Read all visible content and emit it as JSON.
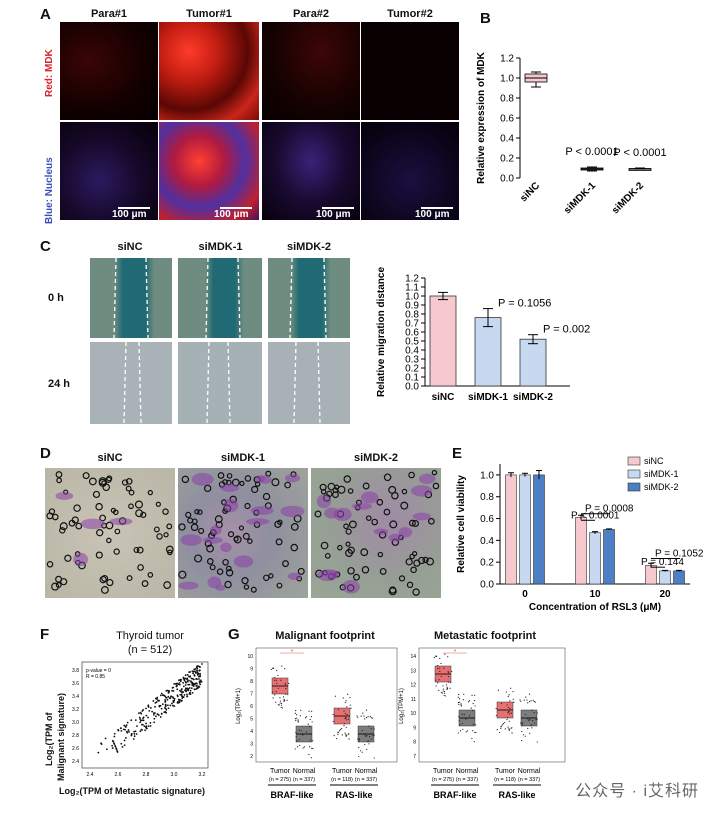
{
  "panels": {
    "A": "A",
    "B": "B",
    "C": "C",
    "D": "D",
    "E": "E",
    "F": "F",
    "G": "G"
  },
  "panelA": {
    "cols": [
      "Para#1",
      "Tumor#1",
      "Para#2",
      "Tumor#2"
    ],
    "row_labels": [
      "Red: MDK",
      "Blue: Nucleus"
    ],
    "scale": "100 μm"
  },
  "panelC": {
    "cols": [
      "siNC",
      "siMDK-1",
      "siMDK-2"
    ],
    "rows": [
      "0 h",
      "24 h"
    ]
  },
  "panelD": {
    "cols": [
      "siNC",
      "siMDK-1",
      "siMDK-2"
    ]
  },
  "panelF": {
    "title": "Thyroid tumor",
    "subtitle": "(n = 512)",
    "pval": "p-value = 0",
    "r": "R = 0.85",
    "ylabel_line1": "Log₂(TPM of",
    "ylabel_line2": "Malignant signature)",
    "xlabel": "Log₂(TPM of Metastatic signature)",
    "xticks": [
      "2.4",
      "2.6",
      "2.8",
      "3.0",
      "3.2"
    ],
    "yticks": [
      "3.8",
      "3.6",
      "3.4",
      "3.2",
      "3.0",
      "2.8",
      "2.6",
      "2.4"
    ]
  },
  "panelG": {
    "left_title": "Malignant footprint",
    "right_title": "Metastatic footprint",
    "ylabel": "Log₂(TPM+1)",
    "groups": [
      "Tumor",
      "Normal",
      "Tumor",
      "Normal"
    ],
    "left_n": [
      "(n = 275)",
      "(n = 337)",
      "(n = 118)",
      "(n = 337)"
    ],
    "right_n": [
      "(n = 275)",
      "(n = 337)",
      "(n = 118)",
      "(n = 337)"
    ],
    "cat1": "BRAF-like",
    "cat2": "RAS-like",
    "left_yticks": [
      "10",
      "9",
      "8",
      "7",
      "6",
      "5",
      "4",
      "3",
      "2"
    ],
    "right_yticks": [
      "14",
      "13",
      "12",
      "11",
      "10",
      "9",
      "8",
      "7"
    ],
    "sig": "*"
  },
  "watermark": "公众号 · i艾科研",
  "chart_data": [
    {
      "id": "B",
      "type": "box",
      "categories": [
        "siNC",
        "siMDK-1",
        "siMDK-2"
      ],
      "median": [
        1.0,
        0.09,
        0.09
      ],
      "q1": [
        0.96,
        0.08,
        0.085
      ],
      "q3": [
        1.04,
        0.1,
        0.095
      ],
      "min": [
        0.91,
        0.07,
        0.08
      ],
      "max": [
        1.06,
        0.11,
        0.1
      ],
      "annotations": [
        "",
        "P < 0.0001",
        "P < 0.0001"
      ],
      "ylabel": "Relative expression of MDK",
      "ylim": [
        0,
        1.2
      ],
      "yticks": [
        0.0,
        0.2,
        0.4,
        0.6,
        0.8,
        1.0,
        1.2
      ],
      "colors": [
        "#f6c9cf",
        "#c6d9f1",
        "#c6d9f1"
      ]
    },
    {
      "id": "C",
      "type": "bar",
      "categories": [
        "siNC",
        "siMDK-1",
        "siMDK-2"
      ],
      "values": [
        1.0,
        0.76,
        0.52
      ],
      "errors": [
        0.04,
        0.1,
        0.05
      ],
      "annotations": [
        "",
        "P = 0.1056",
        "P = 0.0024"
      ],
      "ylabel": "Relative migration distance",
      "ylim": [
        0,
        1.2
      ],
      "yticks": [
        0.0,
        0.1,
        0.2,
        0.3,
        0.4,
        0.5,
        0.6,
        0.7,
        0.8,
        0.9,
        1.0,
        1.1,
        1.2
      ],
      "colors": [
        "#f6c9cf",
        "#c6d9f1",
        "#c6d9f1"
      ]
    },
    {
      "id": "E",
      "type": "bar",
      "categories": [
        "0",
        "10",
        "20"
      ],
      "series": [
        {
          "name": "siNC",
          "values": [
            1.0,
            0.61,
            0.17
          ],
          "errors": [
            0.02,
            0.02,
            0.02
          ],
          "color": "#f6c9cf"
        },
        {
          "name": "siMDK-1",
          "values": [
            1.0,
            0.47,
            0.12
          ],
          "errors": [
            0.015,
            0.01,
            0.005
          ],
          "color": "#c6d9f1"
        },
        {
          "name": "siMDK-2",
          "values": [
            1.0,
            0.5,
            0.12
          ],
          "errors": [
            0.04,
            0.005,
            0.005
          ],
          "color": "#4d7fc4"
        }
      ],
      "annotations": [
        "P = 0.0008",
        "P < 0.0001",
        "P = 0.1052",
        "P = 0.144"
      ],
      "ylabel": "Relative cell viability",
      "xlabel": "Concentration of RSL3 (μM)",
      "ylim": [
        0,
        1.1
      ],
      "yticks": [
        0.0,
        0.2,
        0.4,
        0.6,
        0.8,
        1.0
      ]
    }
  ]
}
